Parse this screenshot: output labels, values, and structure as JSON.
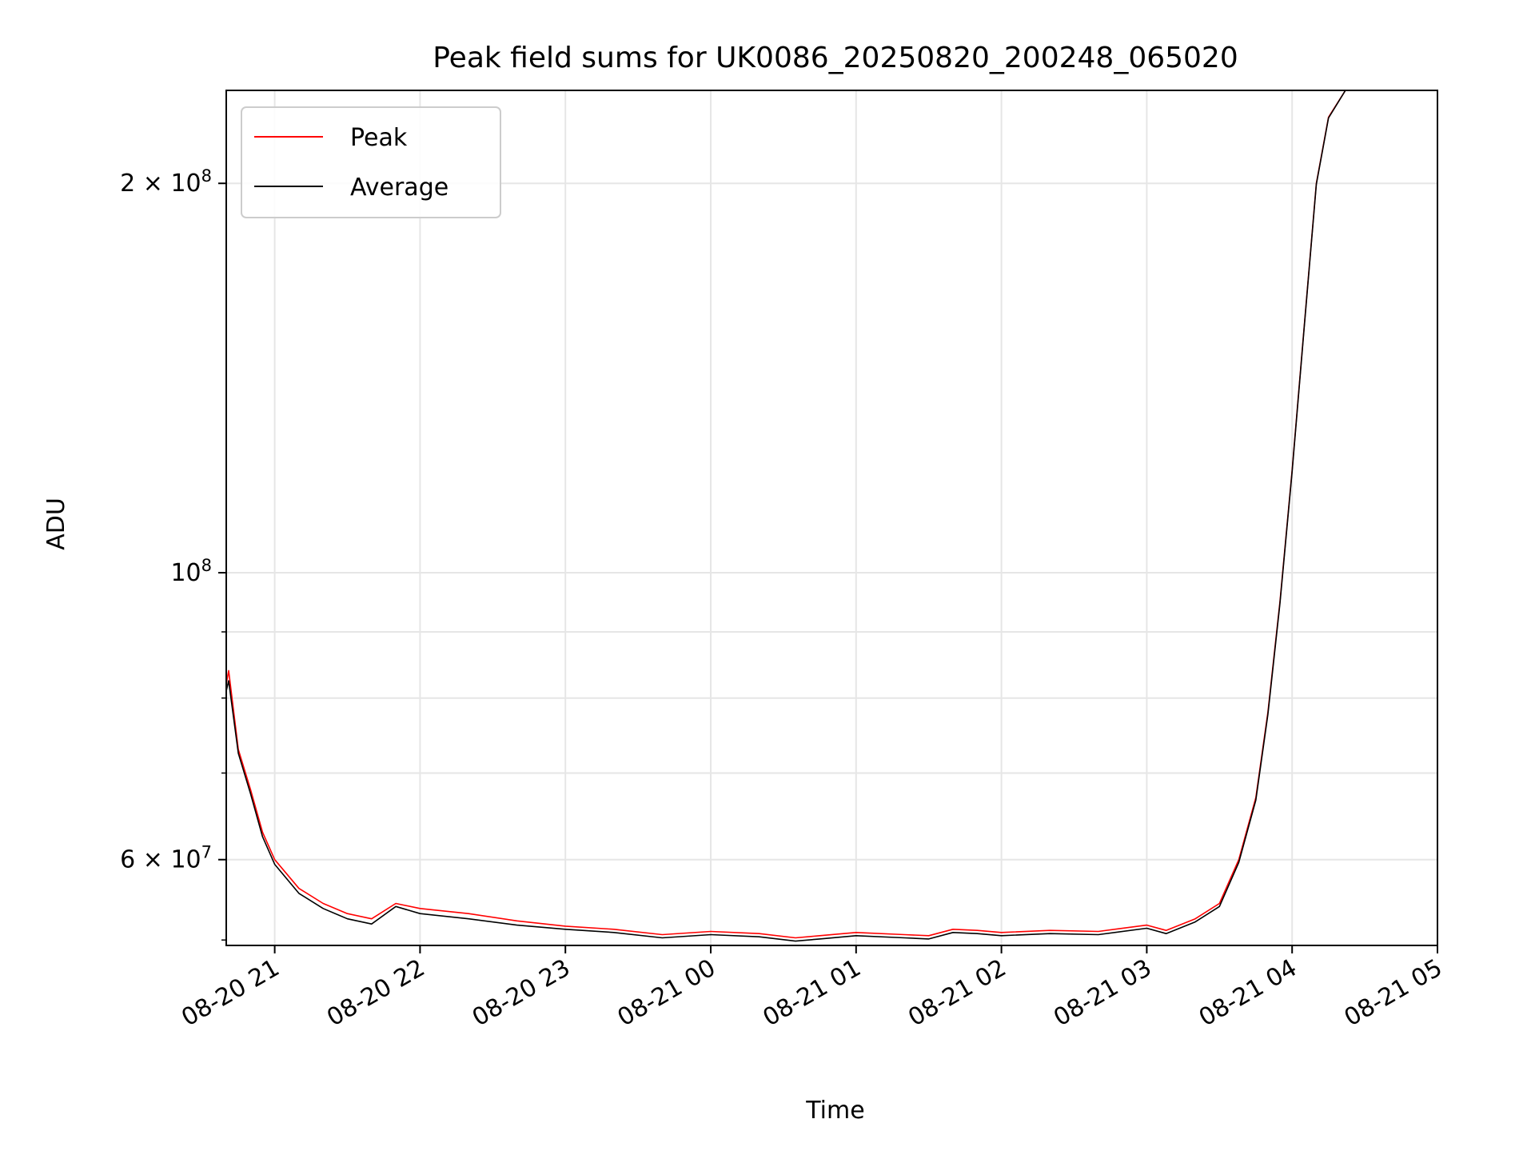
{
  "chart_data": {
    "type": "line",
    "title": "Peak field sums for UK0086_20250820_200248_065020",
    "xlabel": "Time",
    "ylabel": "ADU",
    "y_scale": "log",
    "grid": true,
    "legend_position": "upper-left",
    "xlim": [
      "2025-08-20 20:40",
      "2025-08-21 05:00"
    ],
    "ylim": [
      51500000,
      236000000
    ],
    "x_ticks": [
      {
        "value": "2025-08-20 21:00",
        "label": "08-20 21"
      },
      {
        "value": "2025-08-20 22:00",
        "label": "08-20 22"
      },
      {
        "value": "2025-08-20 23:00",
        "label": "08-20 23"
      },
      {
        "value": "2025-08-21 00:00",
        "label": "08-21 00"
      },
      {
        "value": "2025-08-21 01:00",
        "label": "08-21 01"
      },
      {
        "value": "2025-08-21 02:00",
        "label": "08-21 02"
      },
      {
        "value": "2025-08-21 03:00",
        "label": "08-21 03"
      },
      {
        "value": "2025-08-21 04:00",
        "label": "08-21 04"
      },
      {
        "value": "2025-08-21 05:00",
        "label": "08-21 05"
      }
    ],
    "y_major_ticks": [
      {
        "value": 60000000,
        "mantissa": "6",
        "exponent": "7",
        "label": "6 × 10^7"
      },
      {
        "value": 100000000,
        "mantissa": "",
        "exponent": "8",
        "label": "10^8"
      },
      {
        "value": 200000000,
        "mantissa": "2",
        "exponent": "8",
        "label": "2 × 10^8"
      }
    ],
    "y_minor_ticks": [
      70000000,
      80000000,
      90000000
    ],
    "series": [
      {
        "name": "Peak",
        "color": "#ff0000",
        "x": [
          "2025-08-20 20:40",
          "2025-08-20 20:41",
          "2025-08-20 20:45",
          "2025-08-20 20:50",
          "2025-08-20 20:55",
          "2025-08-20 21:00",
          "2025-08-20 21:10",
          "2025-08-20 21:20",
          "2025-08-20 21:30",
          "2025-08-20 21:40",
          "2025-08-20 21:50",
          "2025-08-20 22:00",
          "2025-08-20 22:20",
          "2025-08-20 22:40",
          "2025-08-20 23:00",
          "2025-08-20 23:20",
          "2025-08-20 23:40",
          "2025-08-21 00:00",
          "2025-08-21 00:20",
          "2025-08-21 00:35",
          "2025-08-21 00:45",
          "2025-08-21 01:00",
          "2025-08-21 01:20",
          "2025-08-21 01:30",
          "2025-08-21 01:40",
          "2025-08-21 01:50",
          "2025-08-21 02:00",
          "2025-08-21 02:20",
          "2025-08-21 02:40",
          "2025-08-21 03:00",
          "2025-08-21 03:08",
          "2025-08-21 03:20",
          "2025-08-21 03:30",
          "2025-08-21 03:38",
          "2025-08-21 03:45",
          "2025-08-21 03:50",
          "2025-08-21 03:55",
          "2025-08-21 04:00",
          "2025-08-21 04:05",
          "2025-08-21 04:10",
          "2025-08-21 04:15",
          "2025-08-21 04:22"
        ],
        "values": [
          82000000,
          84000000,
          73000000,
          68000000,
          63000000,
          60000000,
          57000000,
          55500000,
          54500000,
          54000000,
          55500000,
          55000000,
          54500000,
          53800000,
          53300000,
          53000000,
          52500000,
          52800000,
          52600000,
          52200000,
          52400000,
          52700000,
          52500000,
          52400000,
          53000000,
          52900000,
          52700000,
          52900000,
          52800000,
          53400000,
          52900000,
          54000000,
          55500000,
          60000000,
          67000000,
          78000000,
          95000000,
          120000000,
          155000000,
          200000000,
          225000000,
          236000000
        ]
      },
      {
        "name": "Average",
        "color": "#000000",
        "x": [
          "2025-08-20 20:40",
          "2025-08-20 20:41",
          "2025-08-20 20:45",
          "2025-08-20 20:50",
          "2025-08-20 20:55",
          "2025-08-20 21:00",
          "2025-08-20 21:10",
          "2025-08-20 21:20",
          "2025-08-20 21:30",
          "2025-08-20 21:40",
          "2025-08-20 21:50",
          "2025-08-20 22:00",
          "2025-08-20 22:20",
          "2025-08-20 22:40",
          "2025-08-20 23:00",
          "2025-08-20 23:20",
          "2025-08-20 23:40",
          "2025-08-21 00:00",
          "2025-08-21 00:20",
          "2025-08-21 00:35",
          "2025-08-21 00:45",
          "2025-08-21 01:00",
          "2025-08-21 01:20",
          "2025-08-21 01:30",
          "2025-08-21 01:40",
          "2025-08-21 01:50",
          "2025-08-21 02:00",
          "2025-08-21 02:20",
          "2025-08-21 02:40",
          "2025-08-21 03:00",
          "2025-08-21 03:08",
          "2025-08-21 03:20",
          "2025-08-21 03:30",
          "2025-08-21 03:38",
          "2025-08-21 03:45",
          "2025-08-21 03:50",
          "2025-08-21 03:55",
          "2025-08-21 04:00",
          "2025-08-21 04:05",
          "2025-08-21 04:10",
          "2025-08-21 04:15",
          "2025-08-21 04:22"
        ],
        "values": [
          81000000,
          82500000,
          72500000,
          67500000,
          62500000,
          59500000,
          56500000,
          55000000,
          54000000,
          53500000,
          55200000,
          54500000,
          54000000,
          53400000,
          53000000,
          52700000,
          52200000,
          52500000,
          52300000,
          51900000,
          52100000,
          52400000,
          52200000,
          52100000,
          52700000,
          52600000,
          52400000,
          52600000,
          52500000,
          53100000,
          52600000,
          53700000,
          55200000,
          59700000,
          66700000,
          77700000,
          94700000,
          119700000,
          154700000,
          199700000,
          224700000,
          236000000
        ]
      }
    ]
  }
}
